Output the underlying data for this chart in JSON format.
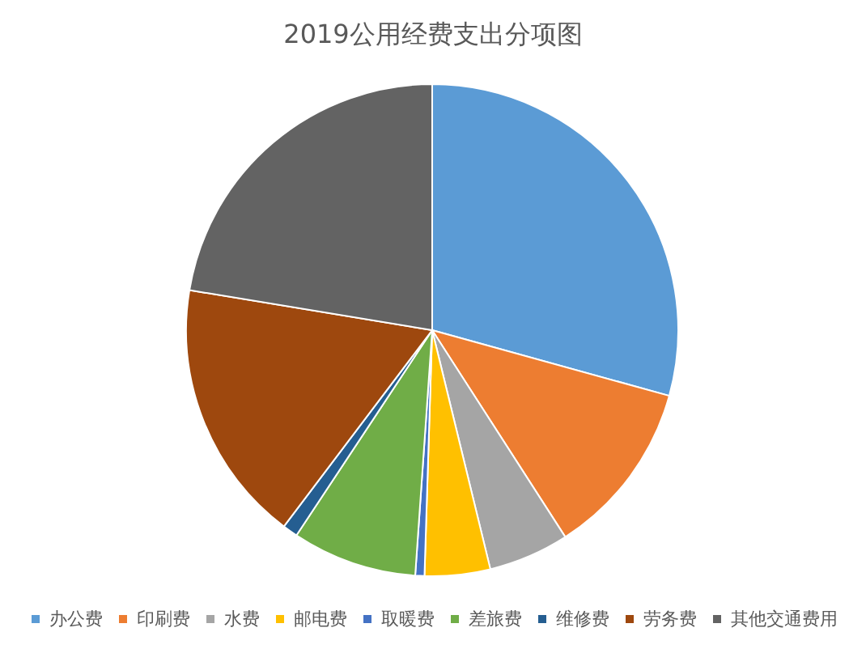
{
  "chart_data": {
    "type": "pie",
    "title": "2019公用经费支出分项图",
    "categories": [
      "办公费",
      "印刷费",
      "水费",
      "邮电费",
      "取暖费",
      "差旅费",
      "维修费",
      "劳务费",
      "其他交通费用"
    ],
    "values": [
      29.3,
      11.6,
      5.3,
      4.3,
      0.6,
      8.2,
      1.0,
      17.3,
      22.4
    ],
    "colors": [
      "#5b9bd5",
      "#ed7d31",
      "#a5a5a5",
      "#ffc000",
      "#4472c4",
      "#70ad47",
      "#255e91",
      "#9e480e",
      "#636363"
    ],
    "legend": "bottom"
  }
}
